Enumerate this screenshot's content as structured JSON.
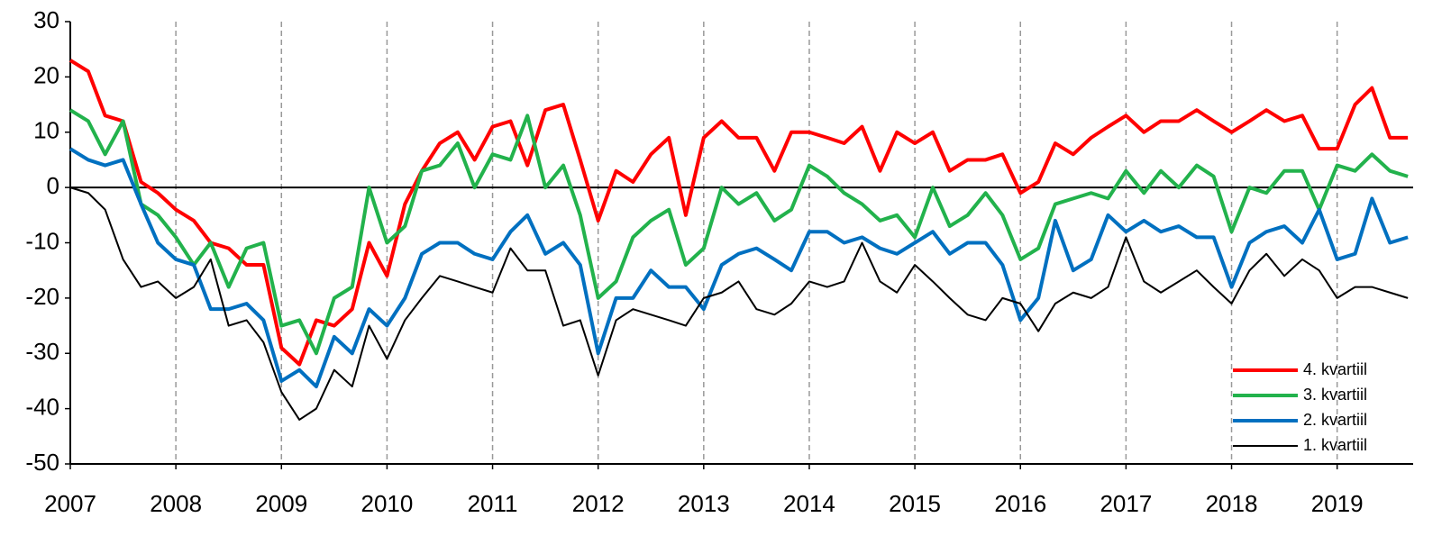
{
  "chart_data": {
    "type": "line",
    "x": [
      2007,
      2007.17,
      2007.33,
      2007.5,
      2007.67,
      2007.83,
      2008,
      2008.17,
      2008.33,
      2008.5,
      2008.67,
      2008.83,
      2009,
      2009.17,
      2009.33,
      2009.5,
      2009.67,
      2009.83,
      2010,
      2010.17,
      2010.33,
      2010.5,
      2010.67,
      2010.83,
      2011,
      2011.17,
      2011.33,
      2011.5,
      2011.67,
      2011.83,
      2012,
      2012.17,
      2012.33,
      2012.5,
      2012.67,
      2012.83,
      2013,
      2013.17,
      2013.33,
      2013.5,
      2013.67,
      2013.83,
      2014,
      2014.17,
      2014.33,
      2014.5,
      2014.67,
      2014.83,
      2015,
      2015.17,
      2015.33,
      2015.5,
      2015.67,
      2015.83,
      2016,
      2016.17,
      2016.33,
      2016.5,
      2016.67,
      2016.83,
      2017,
      2017.17,
      2017.33,
      2017.5,
      2017.67,
      2017.83,
      2018,
      2018.17,
      2018.33,
      2018.5,
      2018.67,
      2018.83,
      2019,
      2019.17,
      2019.33,
      2019.5,
      2019.67
    ],
    "series": [
      {
        "name": "4. kvartiil",
        "color": "#ff0000",
        "values": [
          23,
          21,
          13,
          12,
          1,
          -1,
          -4,
          -6,
          -10,
          -11,
          -14,
          -14,
          -29,
          -32,
          -24,
          -25,
          -22,
          -10,
          -16,
          -3,
          3,
          8,
          10,
          5,
          11,
          12,
          4,
          14,
          15,
          5,
          -6,
          3,
          1,
          6,
          9,
          -5,
          9,
          12,
          9,
          9,
          3,
          10,
          10,
          9,
          8,
          11,
          3,
          10,
          8,
          10,
          3,
          5,
          5,
          6,
          -1,
          1,
          8,
          6,
          9,
          11,
          13,
          10,
          12,
          12,
          14,
          12,
          10,
          12,
          14,
          12,
          13,
          7,
          7,
          15,
          18,
          9,
          9
        ]
      },
      {
        "name": "3. kvartiil",
        "color": "#22b24c",
        "values": [
          14,
          12,
          6,
          12,
          -3,
          -5,
          -9,
          -14,
          -10,
          -18,
          -11,
          -10,
          -25,
          -24,
          -30,
          -20,
          -18,
          0,
          -10,
          -7,
          3,
          4,
          8,
          0,
          6,
          5,
          13,
          0,
          4,
          -5,
          -20,
          -17,
          -9,
          -6,
          -4,
          -14,
          -11,
          0,
          -3,
          -1,
          -6,
          -4,
          4,
          2,
          -1,
          -3,
          -6,
          -5,
          -9,
          0,
          -7,
          -5,
          -1,
          -5,
          -13,
          -11,
          -3,
          -2,
          -1,
          -2,
          3,
          -1,
          3,
          0,
          4,
          2,
          -8,
          0,
          -1,
          3,
          3,
          -4,
          4,
          3,
          6,
          3,
          2
        ]
      },
      {
        "name": "2. kvartiil",
        "color": "#0070c0",
        "values": [
          7,
          5,
          4,
          5,
          -3,
          -10,
          -13,
          -14,
          -22,
          -22,
          -21,
          -24,
          -35,
          -33,
          -36,
          -27,
          -30,
          -22,
          -25,
          -20,
          -12,
          -10,
          -10,
          -12,
          -13,
          -8,
          -5,
          -12,
          -10,
          -14,
          -30,
          -20,
          -20,
          -15,
          -18,
          -18,
          -22,
          -14,
          -12,
          -11,
          -13,
          -15,
          -8,
          -8,
          -10,
          -9,
          -11,
          -12,
          -10,
          -8,
          -12,
          -10,
          -10,
          -14,
          -24,
          -20,
          -6,
          -15,
          -13,
          -5,
          -8,
          -6,
          -8,
          -7,
          -9,
          -9,
          -18,
          -10,
          -8,
          -7,
          -10,
          -4,
          -13,
          -12,
          -2,
          -10,
          -9
        ]
      },
      {
        "name": "1. kvartiil",
        "color": "#000000",
        "values": [
          0,
          -1,
          -4,
          -13,
          -18,
          -17,
          -20,
          -18,
          -13,
          -25,
          -24,
          -28,
          -37,
          -42,
          -40,
          -33,
          -36,
          -25,
          -31,
          -24,
          -20,
          -16,
          -17,
          -18,
          -19,
          -11,
          -15,
          -15,
          -25,
          -24,
          -34,
          -24,
          -22,
          -23,
          -24,
          -25,
          -20,
          -19,
          -17,
          -22,
          -23,
          -21,
          -17,
          -18,
          -17,
          -10,
          -17,
          -19,
          -14,
          -17,
          -20,
          -23,
          -24,
          -20,
          -21,
          -26,
          -21,
          -19,
          -20,
          -18,
          -9,
          -17,
          -19,
          -17,
          -15,
          -18,
          -21,
          -15,
          -12,
          -16,
          -13,
          -15,
          -20,
          -18,
          -18,
          -19,
          -20
        ]
      }
    ],
    "xlim": [
      2007,
      2019.72
    ],
    "xticks": [
      2007,
      2008,
      2009,
      2010,
      2011,
      2012,
      2013,
      2014,
      2015,
      2016,
      2017,
      2018,
      2019
    ],
    "ylim": [
      -50,
      30
    ],
    "yticks": [
      -50,
      -40,
      -30,
      -20,
      -10,
      0,
      10,
      20,
      30
    ],
    "grid": true,
    "legend": "lower right"
  }
}
